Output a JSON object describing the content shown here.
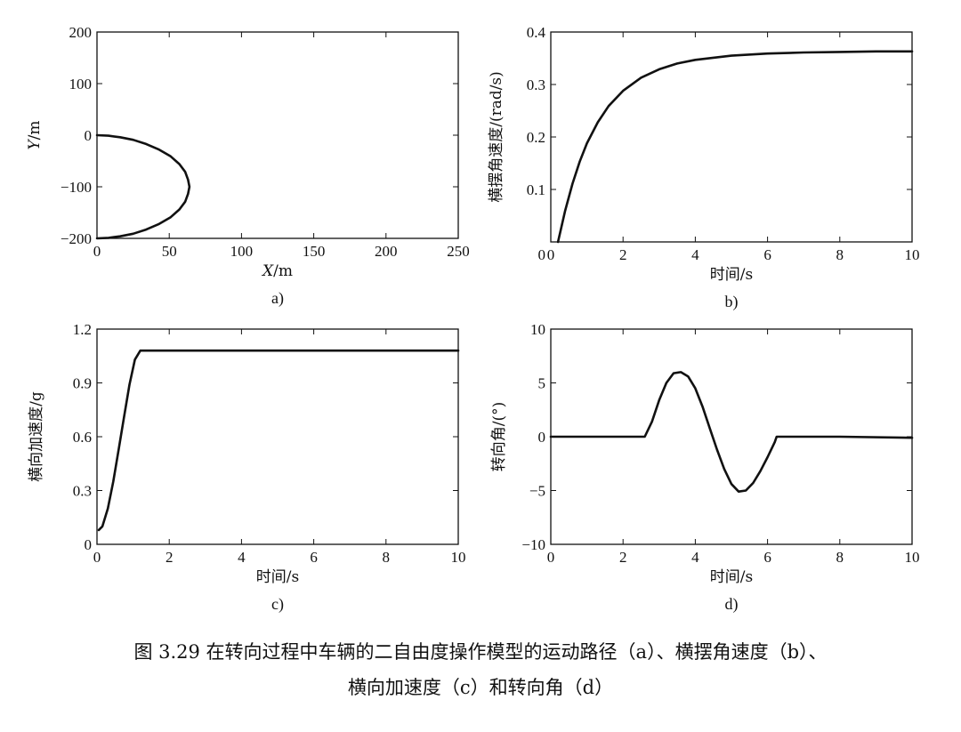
{
  "chart_data": [
    {
      "id": "a",
      "type": "line",
      "sublabel": "a)",
      "xlabel_italic": "X",
      "xlabel_unit": "/m",
      "ylabel_italic": "Y",
      "ylabel_unit": "/m",
      "xlim": [
        0,
        250
      ],
      "ylim": [
        -200,
        200
      ],
      "xticks": [
        0,
        50,
        100,
        150,
        200,
        250
      ],
      "yticks": [
        -200,
        -100,
        0,
        100,
        200
      ],
      "ytick_labels": [
        "−200",
        "−100",
        "0",
        "100",
        "200"
      ],
      "series": [
        {
          "x": [
            0,
            8,
            16,
            25,
            34,
            43,
            51,
            57,
            61,
            63,
            64,
            63,
            61,
            57,
            51,
            43,
            34,
            25,
            16,
            8,
            0
          ],
          "y": [
            0,
            -1,
            -4,
            -9,
            -17,
            -28,
            -41,
            -56,
            -71,
            -86,
            -100,
            -114,
            -129,
            -144,
            -159,
            -172,
            -183,
            -191,
            -196,
            -199,
            -200
          ]
        }
      ]
    },
    {
      "id": "b",
      "type": "line",
      "sublabel": "b)",
      "xlabel": "时间/s",
      "ylabel": "横摆角速度/(rad/s)",
      "xlim": [
        0,
        10
      ],
      "ylim": [
        0,
        0.4
      ],
      "xticks": [
        0,
        2,
        4,
        6,
        8,
        10
      ],
      "yticks": [
        0.1,
        0.2,
        0.3,
        0.4
      ],
      "origin_label": "0",
      "series": [
        {
          "x": [
            0.2,
            0.4,
            0.6,
            0.8,
            1.0,
            1.3,
            1.6,
            2.0,
            2.5,
            3.0,
            3.5,
            4.0,
            5.0,
            6.0,
            7.0,
            8.0,
            9.0,
            10.0
          ],
          "y": [
            0.0,
            0.06,
            0.111,
            0.153,
            0.188,
            0.228,
            0.259,
            0.288,
            0.313,
            0.329,
            0.34,
            0.347,
            0.355,
            0.359,
            0.361,
            0.362,
            0.363,
            0.363
          ]
        }
      ]
    },
    {
      "id": "c",
      "type": "line",
      "sublabel": "c)",
      "xlabel": "时间/s",
      "ylabel": "横向加速度/g",
      "xlim": [
        0,
        10
      ],
      "ylim": [
        0,
        1.2
      ],
      "xticks": [
        0,
        2,
        4,
        6,
        8,
        10
      ],
      "yticks": [
        0,
        0.3,
        0.6,
        0.9,
        1.2
      ],
      "series": [
        {
          "x": [
            0.05,
            0.15,
            0.3,
            0.45,
            0.6,
            0.75,
            0.9,
            1.05,
            1.2,
            1.4,
            2.0,
            4.0,
            6.0,
            8.0,
            10.0
          ],
          "y": [
            0.08,
            0.1,
            0.2,
            0.35,
            0.53,
            0.71,
            0.89,
            1.03,
            1.08,
            1.08,
            1.08,
            1.08,
            1.08,
            1.08,
            1.08
          ]
        }
      ]
    },
    {
      "id": "d",
      "type": "line",
      "sublabel": "d)",
      "xlabel": "时间/s",
      "ylabel": "转向角/(°)",
      "xlim": [
        0,
        10
      ],
      "ylim": [
        -10,
        10
      ],
      "xticks": [
        0,
        2,
        4,
        6,
        8,
        10
      ],
      "yticks": [
        -10,
        -5,
        0,
        5,
        10
      ],
      "ytick_labels": [
        "−10",
        "−5",
        "0",
        "5",
        "10"
      ],
      "series": [
        {
          "x": [
            0,
            2.6,
            2.8,
            3.0,
            3.2,
            3.4,
            3.6,
            3.8,
            4.0,
            4.2,
            4.4,
            4.6,
            4.8,
            5.0,
            5.2,
            5.4,
            5.6,
            5.8,
            6.0,
            6.2,
            6.25,
            8.0,
            10.0
          ],
          "y": [
            0,
            0,
            1.4,
            3.4,
            5.0,
            5.9,
            6.0,
            5.6,
            4.5,
            2.8,
            0.8,
            -1.2,
            -3.0,
            -4.4,
            -5.1,
            -5.0,
            -4.3,
            -3.2,
            -1.9,
            -0.5,
            0,
            0,
            -0.1
          ]
        }
      ]
    }
  ],
  "caption_line1": "图 3.29   在转向过程中车辆的二自由度操作模型的运动路径（a）、横摆角速度（b）、",
  "caption_line2": "横向加速度（c）和转向角（d）"
}
